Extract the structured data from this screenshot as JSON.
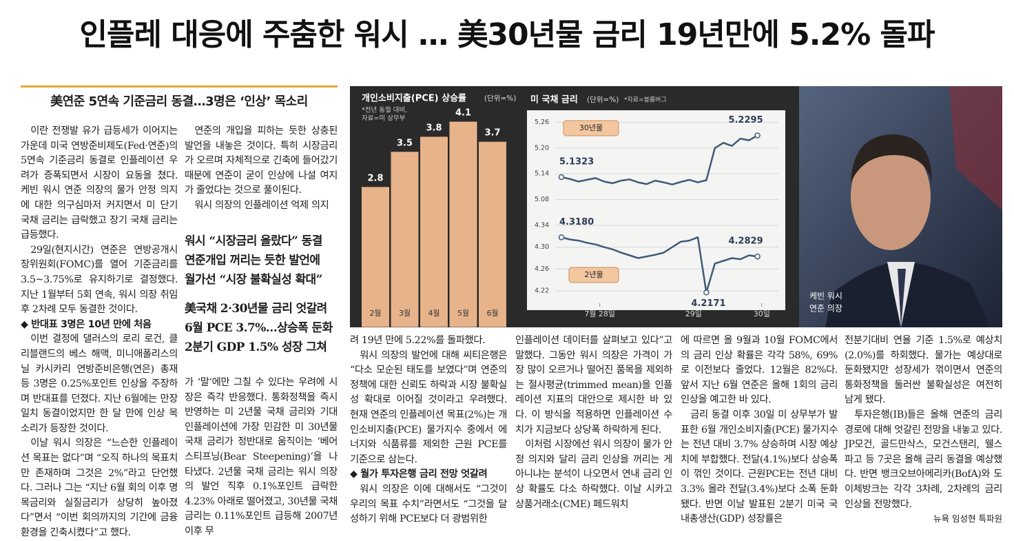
{
  "header": {
    "title": "인플레 대응에 주춤한 워시 … 美30년물 금리 19년만에 5.2% 돌파"
  },
  "article": {
    "subtitle": "美연준 5연속 기준금리 동결…3명은 ‘인상’ 목소리",
    "columns": [
      [
        "이란 전쟁발 유가 급등세가 이어지는 가운데 미국 연방준비제도(Fed·연준)의 5연속 기준금리 동결로 인플레이션 우려가 증폭되면서 시장이 요동을 쳤다. 케빈 워시 연준 의장의 물가 안정 의지에 대한 의구심마저 커지면서 미 단기 국채 금리는 급락했고 장기 국채 금리는 급등했다.",
        "29일(현지시간) 연준은 연방공개시장위원회(FOMC)를 열어 기준금리를 3.5~3.75%로 유지하기로 결정했다. 지난 1월부터 5회 연속, 워시 의장 취임 후 2차례 모두 동결한 것이다.",
        "◆ 반대표 3명은 10년 만에 처음",
        "이번 결정에 댈러스의 로리 로건, 클리블랜드의 베스 해맥, 미니애폴리스의 닐 카시카리 연방준비은행(연은) 총재 등 3명은 0.25%포인트 인상을 주장하며 반대표를 던졌다. 지난 6월에는 만장일치 동결이었지만 한 달 만에 인상 목소리가 등장한 것이다.",
        "이날 워시 의장은 “느슨한 인플레이션 목표는 없다”며 “오직 하나의 목표치만 존재하며 그것은 2%”라고 단언했다. 그러나 그는 “지난 6월 회의 이후 명목금리와 실질금리가 상당히 높아졌다”면서 “이번 회의까지의 기간에 금융환경을 긴축시켰다”고 했다."
      ],
      [
        "연준의 개입을 피하는 듯한 상충된 발언을 내놓은 것이다. 특히 시장금리가 오르며 자체적으로 긴축에 들어갔기 때문에 연준이 굳이 인상에 나설 여지가 줄었다는 것으로 풀이된다.",
        "워시 의장의 인플레이션 억제 의지",
        "가 ‘말’에만 그칠 수 있다는 우려에 시장은 즉각 반응했다. 통화정책을 즉시 반영하는 미 2년물 국채 금리와 기대 인플레이션에 가장 민감한 미 30년물 국채 금리가 정반대로 움직이는 ‘베어스티프닝(Bear Steepening)’을 나타냈다. 2년물 국채 금리는 워시 의장의 발언 직후 0.1%포인트 급락한 4.23% 아래로 떨어졌고, 30년물 국채 금리는 0.11%포인트 급등해 2007년 이후 무"
      ],
      [
        "려 19년 만에 5.22%를 돌파했다.",
        "워시 의장의 발언에 대해 씨티은행은 “다소 모순된 태도를 보였다”며 연준의 정책에 대한 신뢰도 하락과 시장 불확실성 확대로 이어질 것이라고 우려했다. 현재 연준의 인플레이션 목표(2%)는 개인소비지출(PCE) 물가지수 중에서 에너지와 식품류를 제외한 근원 PCE를 기준으로 삼는다.",
        "◆ 월가 투자은행 금리 전망 엇갈려",
        "워시 의장은 이에 대해서도 “그것이 우리의 목표 수치”라면서도 “그것을 달성하기 위해 PCE보다 더 광범위한"
      ],
      [
        "인플레이션 데이터를 살펴보고 있다”고 말했다. 그동안 워시 의장은 가격이 가장 많이 오르거나 떨어진 품목을 제외하는 절사평균(trimmed mean)을 인플레이션 지표의 대안으로 제시한 바 있다. 이 방식을 적용하면 인플레이션 수치가 지금보다 상당폭 하락하게 된다.",
        "이처럼 시장에선 워시 의장이 물가 안정 의지와 달리 금리 인상을 꺼리는 게 아니냐는 분석이 나오면서 연내 금리 인상 확률도 다소 하락했다. 이날 시카고상품거래소(CME) 페드워치"
      ],
      [
        "에 따르면 올 9월과 10월 FOMC에서의 금리 인상 확률은 각각 58%, 69%로 이전보다 줄었다. 12월은 82%다. 앞서 지난 6월 연준은 올해 1회의 금리 인상을 예고한 바 있다.",
        "금리 동결 이후 30일 미 상무부가 발표한 6월 개인소비지출(PCE) 물가지수는 전년 대비 3.7% 상승하며 시장 예상치에 부합했다. 전달(4.1%)보다 상승폭이 꺾인 것이다. 근원PCE는 전년 대비 3.3% 올라 전달(3.4%)보다 소폭 둔화됐다. 반면 이날 발표된 2분기 미국 국내총생산(GDP) 성장률은"
      ],
      [
        "전분기대비 연율 기준 1.5%로 예상치(2.0%)를 하회했다. 물가는 예상대로 둔화됐지만 성장세가 꺾이면서 연준의 통화정책을 둘러싼 불확실성은 여전히 남게 됐다.",
        "투자은행(IB)들은 올해 연준의 금리 경로에 대해 엇갈린 전망을 내놓고 있다. JP모건, 골드만삭스, 모건스탠리, 웰스파고 등 7곳은 올해 금리 동결을 예상했다. 반면 뱅크오브아메리카(BofA)와 도이체방크는 각각 3차례, 2차례의 금리 인상을 전망했다."
      ]
    ],
    "highlights": [
      [
        "워시 “시장금리 올랐다” 동결",
        "연준개입 꺼리는 듯한 발언에",
        "월가선 “시장 불확실성 확대”"
      ],
      [
        "美국채 2·30년물 금리 엇갈려",
        "6월 PCE 3.7%…상승폭 둔화",
        "2분기 GDP 1.5% 성장 그쳐"
      ]
    ],
    "byline": "뉴욕 임성현 특파원"
  },
  "graphic": {
    "pce": {
      "type": "bar",
      "title": "개인소비지출(PCE) 상승률",
      "unit": "(단위=%)",
      "notes": [
        "*전년 동월 대비,",
        "자료=미 상무부"
      ],
      "categories": [
        "2월",
        "3월",
        "4월",
        "5월",
        "6월"
      ],
      "values": [
        2.8,
        3.5,
        3.8,
        4.1,
        3.7
      ],
      "color": "#e7b38b",
      "ylim": [
        0,
        4.8
      ]
    },
    "treasury": {
      "type": "line",
      "title": "미 국채 금리",
      "unit": "(단위=%)",
      "source": "*자료=블룸버그",
      "xlim": [
        0,
        24
      ],
      "xticks": [
        {
          "value": 4.5,
          "label": "7월 28일"
        },
        {
          "value": 15.5,
          "label": "29일"
        },
        {
          "value": 23.5,
          "label": "30일"
        }
      ],
      "panels": [
        {
          "name": "30년물",
          "ylim": [
            5.06,
            5.28
          ],
          "yticks": [
            5.26,
            {
              "value": 5.2,
              "label": "5.20"
            },
            5.14,
            5.08
          ],
          "series": [
            {
              "color": "#3e5a78",
              "values": [
                5.1323,
                5.128,
                5.122,
                5.126,
                5.13,
                5.122,
                5.118,
                5.124,
                5.127,
                5.12,
                5.116,
                5.124,
                5.12,
                5.115,
                5.121,
                5.126,
                5.12,
                5.125,
                5.2,
                5.212,
                5.205,
                5.222,
                5.218,
                5.2295
              ],
              "value_labels": [
                "5.1323",
                null,
                null,
                null,
                null,
                null,
                null,
                null,
                null,
                null,
                null,
                null,
                null,
                null,
                null,
                null,
                null,
                null,
                null,
                null,
                null,
                null,
                null,
                "5.2295"
              ]
            }
          ]
        },
        {
          "name": "2년물",
          "ylim": [
            4.2,
            4.36
          ],
          "yticks": [
            4.34,
            {
              "value": 4.3,
              "label": "4.30"
            },
            4.26,
            4.22
          ],
          "series": [
            {
              "color": "#3e5a78",
              "values": [
                4.318,
                4.314,
                4.312,
                4.308,
                4.305,
                4.3,
                4.296,
                4.29,
                4.285,
                4.28,
                4.283,
                4.286,
                4.29,
                4.3,
                4.31,
                4.312,
                4.318,
                4.2171,
                4.27,
                4.275,
                4.28,
                4.278,
                4.285,
                4.2829
              ],
              "value_labels": [
                "4.3180",
                null,
                null,
                null,
                null,
                null,
                null,
                null,
                null,
                null,
                null,
                null,
                null,
                null,
                null,
                null,
                null,
                "4.2171",
                null,
                null,
                null,
                null,
                null,
                "4.2829"
              ]
            }
          ]
        }
      ]
    },
    "photo_caption": [
      "케빈 워시",
      "연준 의장"
    ]
  }
}
